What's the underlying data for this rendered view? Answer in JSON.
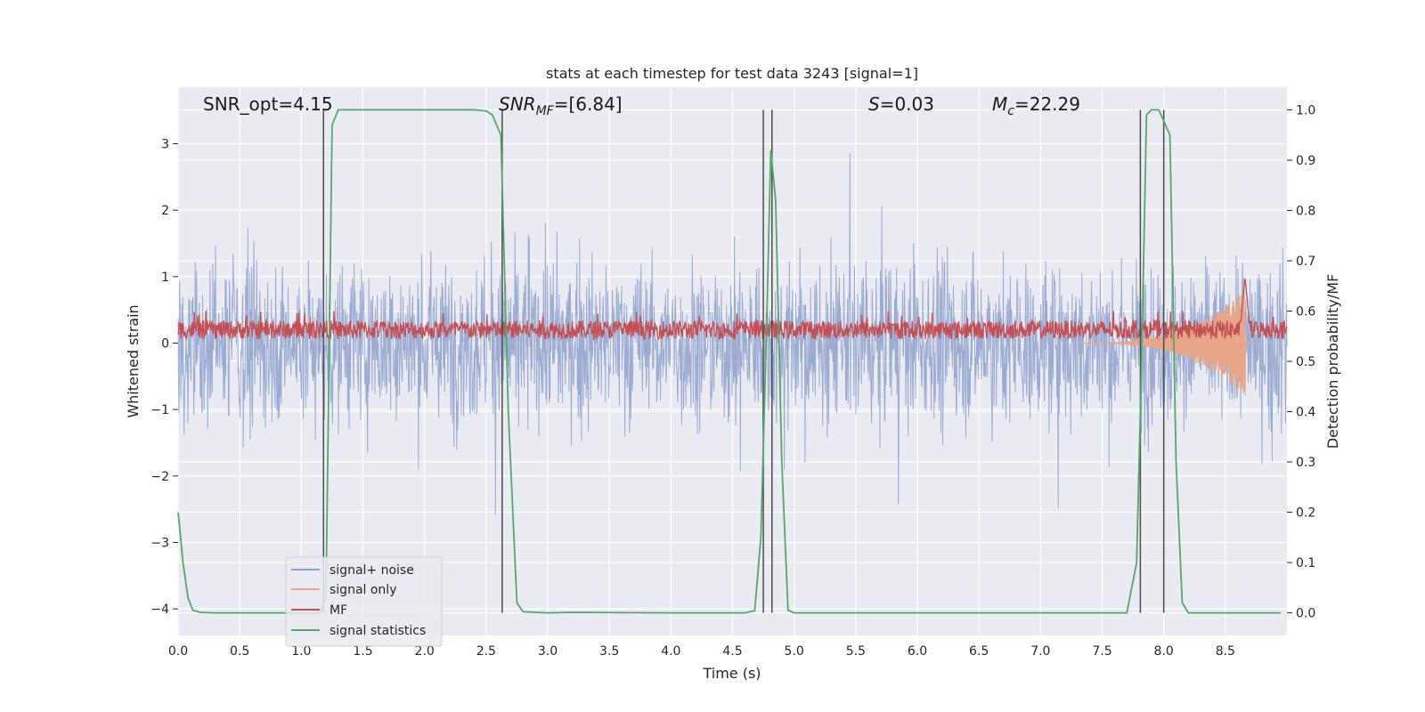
{
  "chart_data": {
    "type": "line",
    "title": "stats at each timestep for test data 3243 [signal=1]",
    "xlabel": "Time (s)",
    "ylabel": "Whitened strain",
    "y2label": "Detection probability/MF",
    "xlim": [
      0,
      9.0
    ],
    "ylim": [
      -4.4,
      3.85
    ],
    "y2lim": [
      -0.045,
      1.045
    ],
    "grid": true,
    "legend_position": "lower-left",
    "x_ticks": [
      0.0,
      0.5,
      1.0,
      1.5,
      2.0,
      2.5,
      3.0,
      3.5,
      4.0,
      4.5,
      5.0,
      5.5,
      6.0,
      6.5,
      7.0,
      7.5,
      8.0,
      8.5
    ],
    "x_tick_labels": [
      "0.0",
      "0.5",
      "1.0",
      "1.5",
      "2.0",
      "2.5",
      "3.0",
      "3.5",
      "4.0",
      "4.5",
      "5.0",
      "5.5",
      "6.0",
      "6.5",
      "7.0",
      "7.5",
      "8.0",
      "8.5"
    ],
    "y_ticks": [
      -4,
      -3,
      -2,
      -1,
      0,
      1,
      2,
      3
    ],
    "y_tick_labels": [
      "−4",
      "−3",
      "−2",
      "−1",
      "0",
      "1",
      "2",
      "3"
    ],
    "y2_ticks": [
      0.0,
      0.1,
      0.2,
      0.3,
      0.4,
      0.5,
      0.6,
      0.7,
      0.8,
      0.9,
      1.0
    ],
    "y2_tick_labels": [
      "0.0",
      "0.1",
      "0.2",
      "0.3",
      "0.4",
      "0.5",
      "0.6",
      "0.7",
      "0.8",
      "0.9",
      "1.0"
    ],
    "annotations": {
      "snr_opt": "SNR_opt=4.15",
      "snr_mf": "SNR_MF=[6.84]",
      "s_value": "S=0.03",
      "mc_value": "M_c=22.29"
    },
    "vertical_lines_x": [
      1.18,
      2.63,
      4.75,
      4.82,
      7.81,
      8.0
    ],
    "series": [
      {
        "name": "signal+ noise",
        "color": "#8da0cb",
        "axis": "left",
        "description_values": "dense noise, typically within about ±1.8, spikes reaching about 3.4 and down to about −3.9",
        "envelope_abs": 1.8,
        "peak": 3.4,
        "trough": -3.9
      },
      {
        "name": "signal only",
        "color": "#e8a58a",
        "axis": "left",
        "chirp_start": 7.3,
        "chirp_peak_time": 8.66,
        "chirp_peak_amplitude": 0.8
      },
      {
        "name": "MF",
        "color": "#c44e52",
        "axis": "left",
        "base_level": 0.2,
        "noise_range": [
          0.02,
          0.45
        ],
        "peak_time": 8.66,
        "peak_value": 1.0
      },
      {
        "name": "signal statistics",
        "color": "#55a868",
        "axis": "right",
        "x": [
          0.0,
          0.04,
          0.08,
          0.12,
          0.18,
          0.3,
          0.5,
          1.0,
          1.15,
          1.2,
          1.25,
          1.3,
          1.5,
          2.0,
          2.4,
          2.5,
          2.55,
          2.62,
          2.68,
          2.75,
          2.8,
          3.0,
          3.2,
          4.0,
          4.6,
          4.68,
          4.73,
          4.78,
          4.81,
          4.85,
          4.9,
          4.95,
          5.0,
          5.5,
          7.0,
          7.7,
          7.78,
          7.82,
          7.86,
          7.9,
          7.96,
          8.05,
          8.1,
          8.15,
          8.2,
          8.5,
          8.95
        ],
        "y": [
          0.2,
          0.1,
          0.03,
          0.005,
          0.001,
          0.0,
          0.0,
          0.0,
          0.0,
          0.03,
          0.97,
          1.0,
          1.0,
          1.0,
          1.0,
          0.998,
          0.99,
          0.95,
          0.4,
          0.02,
          0.002,
          0.0,
          0.001,
          0.0,
          0.0,
          0.004,
          0.15,
          0.6,
          0.92,
          0.82,
          0.3,
          0.005,
          0.0,
          0.0,
          0.0,
          0.0,
          0.1,
          0.5,
          0.99,
          1.0,
          1.0,
          0.95,
          0.3,
          0.02,
          0.0,
          0.0,
          0.0
        ]
      }
    ]
  },
  "legend": {
    "items": [
      {
        "label": "signal+ noise",
        "color": "#8da0cb"
      },
      {
        "label": "signal only",
        "color": "#e8a58a"
      },
      {
        "label": "MF",
        "color": "#c44e52"
      },
      {
        "label": "signal statistics",
        "color": "#55a868"
      }
    ]
  }
}
